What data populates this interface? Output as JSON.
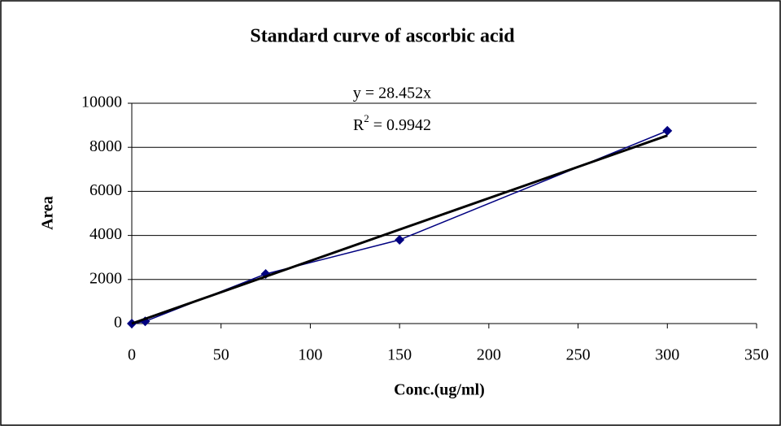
{
  "chart_data": {
    "type": "scatter",
    "title": "Standard curve of ascorbic acid",
    "x_label": "Conc.(ug/ml)",
    "y_label": "Area",
    "equation": "y = 28.452x",
    "r_squared": {
      "symbol": "R",
      "exponent": "2",
      "text": " = 0.9942"
    },
    "series": [
      {
        "color": "#000080",
        "x": [
          0,
          7.5,
          75,
          150,
          300
        ],
        "values": [
          0,
          100,
          2250,
          3800,
          8750
        ]
      }
    ],
    "trendline": {
      "color": "#000000",
      "x": [
        0,
        300
      ],
      "values": [
        0,
        8536
      ]
    },
    "xlim": [
      0,
      350
    ],
    "xticks": [
      0,
      50,
      100,
      150,
      200,
      250,
      300,
      350
    ],
    "ylim": [
      0,
      10000
    ],
    "yticks": [
      0,
      2000,
      4000,
      6000,
      8000,
      10000
    ],
    "grid": true
  }
}
